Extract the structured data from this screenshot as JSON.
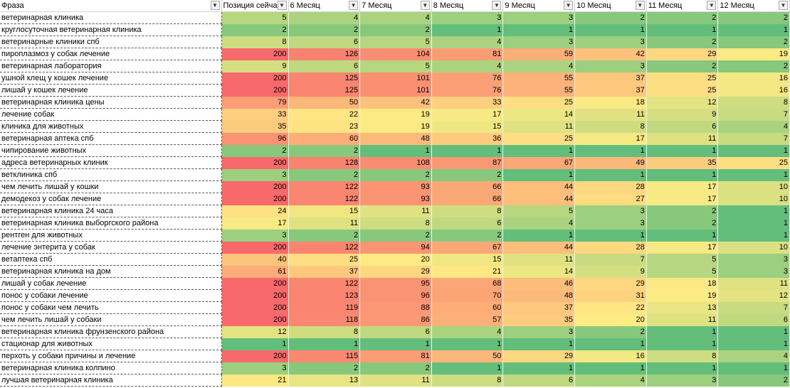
{
  "sheet": {
    "headers": [
      "Фраза",
      "Позиция сейчас",
      "6 Месяц",
      "7 Месяц",
      "8 Месяц",
      "9 Месяц",
      "10 Месяц",
      "11 Месяц",
      "12 Месяц"
    ],
    "filter_icon": "dropdown-arrow-icon",
    "scale_colors": {
      "low": "#63be7b",
      "mid": "#ffeb84",
      "high": "#f8696b"
    },
    "rows": [
      [
        "ветеринарная клиника",
        5,
        4,
        4,
        3,
        3,
        2,
        2,
        2
      ],
      [
        "круглосуточная ветеринарная клиника",
        2,
        2,
        2,
        1,
        1,
        1,
        1,
        1
      ],
      [
        "ветеринарные клиники спб",
        8,
        6,
        5,
        4,
        3,
        3,
        2,
        2
      ],
      [
        "пироплазмоз у собак лечение",
        200,
        126,
        104,
        81,
        59,
        42,
        29,
        19
      ],
      [
        "ветеринарная лаборатория",
        9,
        6,
        5,
        4,
        4,
        3,
        2,
        2
      ],
      [
        "ушной клещ у кошек лечение",
        200,
        125,
        101,
        76,
        55,
        37,
        25,
        16
      ],
      [
        "лишай у кошек лечение",
        200,
        125,
        101,
        76,
        55,
        37,
        25,
        16
      ],
      [
        "ветеринарная клиника цены",
        79,
        50,
        42,
        33,
        25,
        18,
        12,
        8
      ],
      [
        "лечение собак",
        33,
        22,
        19,
        17,
        14,
        11,
        9,
        7
      ],
      [
        "клиника для животных",
        35,
        23,
        19,
        15,
        11,
        8,
        6,
        4
      ],
      [
        "ветеринарная аптека спб",
        96,
        60,
        48,
        36,
        25,
        17,
        11,
        7
      ],
      [
        "чипирование животных",
        2,
        2,
        1,
        1,
        1,
        1,
        1,
        1
      ],
      [
        "адреса ветеринарных клиник",
        200,
        128,
        108,
        87,
        67,
        49,
        35,
        25
      ],
      [
        "ветклиника спб",
        3,
        2,
        2,
        2,
        1,
        1,
        1,
        1
      ],
      [
        "чем лечить лишай у кошки",
        200,
        122,
        93,
        66,
        44,
        28,
        17,
        10
      ],
      [
        "демодекоз у собак лечение",
        200,
        122,
        93,
        66,
        44,
        27,
        17,
        10
      ],
      [
        "ветеринарная клиника 24 часа",
        24,
        15,
        11,
        8,
        5,
        3,
        2,
        1
      ],
      [
        "ветеринарная клиника выборгского района",
        17,
        11,
        8,
        6,
        4,
        3,
        2,
        1
      ],
      [
        "рентген для животных",
        3,
        2,
        2,
        2,
        1,
        1,
        1,
        1
      ],
      [
        "лечение энтерита у собак",
        200,
        122,
        94,
        67,
        44,
        28,
        17,
        10
      ],
      [
        "ветаптека спб",
        40,
        25,
        20,
        15,
        11,
        7,
        5,
        3
      ],
      [
        "ветеринарная клиника на дом",
        61,
        37,
        29,
        21,
        14,
        9,
        5,
        3
      ],
      [
        "лишай у собак лечение",
        200,
        122,
        95,
        68,
        46,
        29,
        18,
        11
      ],
      [
        "понос у собаки лечение",
        200,
        123,
        96,
        70,
        48,
        31,
        19,
        12
      ],
      [
        "понос у собаки чем лечить",
        200,
        119,
        88,
        60,
        37,
        22,
        13,
        7
      ],
      [
        "чем лечить лишай у собаки",
        200,
        118,
        86,
        57,
        35,
        20,
        11,
        6
      ],
      [
        "ветеринарная клиника фрунзенского района",
        12,
        8,
        6,
        4,
        3,
        2,
        1,
        1
      ],
      [
        "стационар для животных",
        1,
        1,
        1,
        1,
        1,
        1,
        1,
        1
      ],
      [
        "перхоть у собаки причины и лечение",
        200,
        115,
        81,
        50,
        29,
        16,
        8,
        4
      ],
      [
        "ветеринарная клиника колпино",
        3,
        2,
        2,
        1,
        1,
        1,
        1,
        1
      ],
      [
        "лучшая ветеринарная клиника",
        21,
        13,
        11,
        8,
        6,
        4,
        3,
        2
      ]
    ]
  }
}
